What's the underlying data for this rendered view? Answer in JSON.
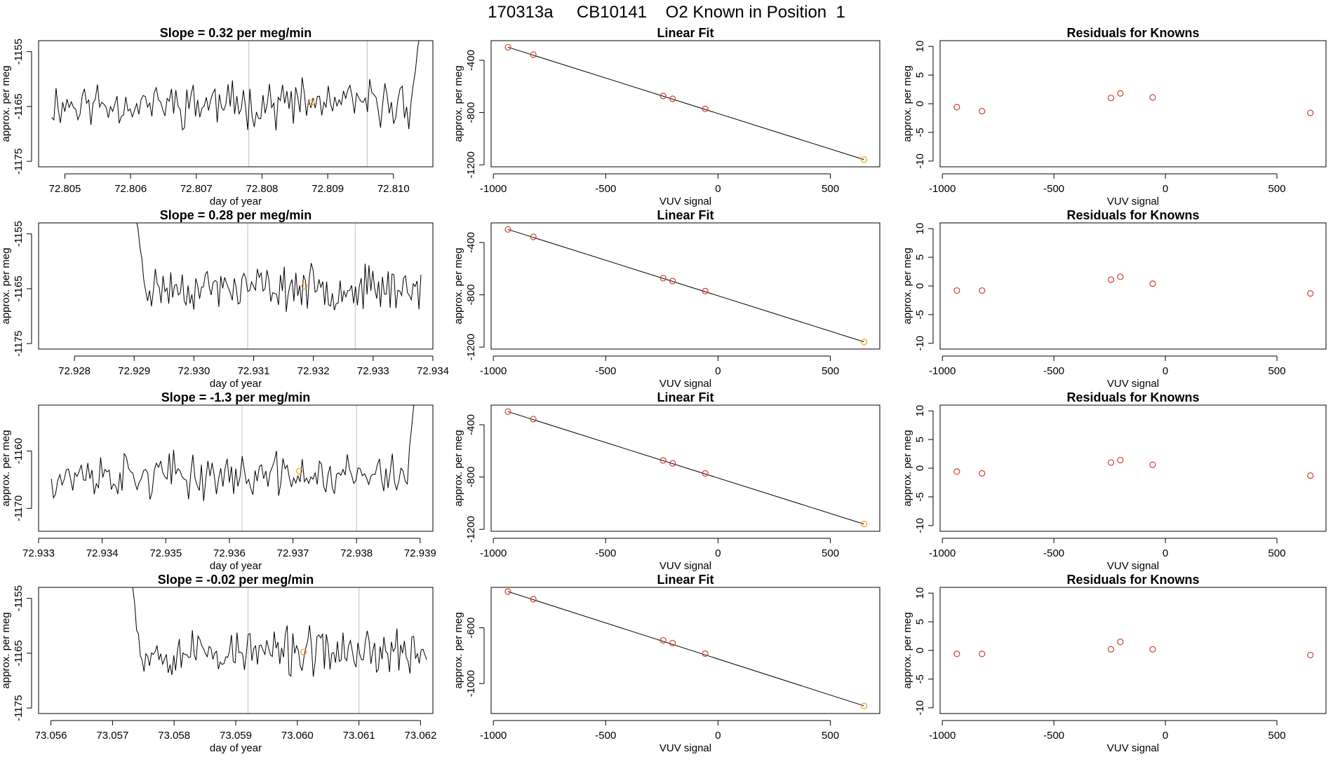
{
  "page": {
    "title": "170313a     CB10141    O2 Known in Position  1"
  },
  "colors": {
    "line": "#000000",
    "axis": "#000000",
    "vline": "#c0c0c0",
    "point_red": "#d04030",
    "point_orange": "#f0a020"
  },
  "chart_data": [
    {
      "id": "ts1",
      "type": "line",
      "title": "Slope =  0.32  per meg/min",
      "xlabel": "day of year",
      "ylabel": "approx. per meg",
      "xlim": [
        72.8046,
        72.8106
      ],
      "ylim": [
        -1176,
        -1153
      ],
      "xticks": [
        72.805,
        72.806,
        72.807,
        72.808,
        72.809,
        72.81
      ],
      "xtick_labels": [
        "72.805",
        "72.806",
        "72.807",
        "72.808",
        "72.809",
        "72.810"
      ],
      "yticks": [
        -1175,
        -1165,
        -1155
      ],
      "ytick_labels": [
        "-1175",
        "-1165",
        "-1155"
      ],
      "vlines": [
        72.8078,
        72.8096
      ],
      "highlight": {
        "x": 72.80875,
        "y": -1164.3
      },
      "series": {
        "x_start": 72.8048,
        "x_end": 72.8104,
        "count": 170,
        "mean": -1164.5,
        "amp": 3.2,
        "seed": 11,
        "start_jump": null,
        "end_jump": {
          "to": -1152,
          "points": 4
        }
      }
    },
    {
      "id": "lf1",
      "type": "scatter",
      "title": "Linear Fit",
      "xlabel": "VUV signal",
      "ylabel": "approx. per meg",
      "xlim": [
        -1010,
        720
      ],
      "ylim": [
        -1215,
        -250
      ],
      "xticks": [
        -1000,
        -500,
        0,
        500
      ],
      "xtick_labels": [
        "-1000",
        "-500",
        "0",
        "500"
      ],
      "yticks": [
        -1200,
        -800,
        -400
      ],
      "ytick_labels": [
        "-1200",
        "-800",
        "-400"
      ],
      "points": [
        [
          -935,
          -300
        ],
        [
          -822,
          -357
        ],
        [
          -244,
          -673
        ],
        [
          -202,
          -695
        ],
        [
          -57,
          -772
        ],
        [
          650,
          -1160
        ]
      ],
      "fit_line": [
        [
          -935,
          -300
        ],
        [
          650,
          -1160
        ]
      ]
    },
    {
      "id": "rk1",
      "type": "scatter",
      "title": "Residuals for Knowns",
      "xlabel": "VUV signal",
      "ylabel": "approx. per meg",
      "xlim": [
        -1010,
        720
      ],
      "ylim": [
        -11,
        11
      ],
      "xticks": [
        -1000,
        -500,
        0,
        500
      ],
      "xtick_labels": [
        "-1000",
        "-500",
        "0",
        "500"
      ],
      "yticks": [
        -10,
        -5,
        0,
        5,
        10
      ],
      "ytick_labels": [
        "-10",
        "-5",
        "0",
        "5",
        "10"
      ],
      "points": [
        [
          -935,
          -0.6
        ],
        [
          -822,
          -1.3
        ],
        [
          -244,
          1.0
        ],
        [
          -202,
          1.8
        ],
        [
          -57,
          1.1
        ],
        [
          650,
          -1.6
        ]
      ]
    },
    {
      "id": "ts2",
      "type": "line",
      "title": "Slope =  0.28  per meg/min",
      "xlabel": "day of year",
      "ylabel": "approx. per meg",
      "xlim": [
        72.9274,
        72.934
      ],
      "ylim": [
        -1176,
        -1153
      ],
      "xticks": [
        72.928,
        72.929,
        72.93,
        72.931,
        72.932,
        72.933,
        72.934
      ],
      "xtick_labels": [
        "72.928",
        "72.929",
        "72.930",
        "72.931",
        "72.932",
        "72.933",
        "72.934"
      ],
      "yticks": [
        -1175,
        -1165,
        -1155
      ],
      "ytick_labels": [
        "-1175",
        "-1165",
        "-1155"
      ],
      "vlines": [
        72.9309,
        72.9327
      ],
      "highlight": {
        "x": 72.93185,
        "y": -1164.5
      },
      "series": {
        "x_start": 72.929,
        "x_end": 72.9338,
        "count": 150,
        "mean": -1164.8,
        "amp": 3.0,
        "seed": 23,
        "start_jump": {
          "from": -1150,
          "points": 6
        },
        "end_jump": null
      }
    },
    {
      "id": "lf2",
      "type": "scatter",
      "title": "Linear Fit",
      "xlabel": "VUV signal",
      "ylabel": "approx. per meg",
      "xlim": [
        -1010,
        720
      ],
      "ylim": [
        -1215,
        -250
      ],
      "xticks": [
        -1000,
        -500,
        0,
        500
      ],
      "xtick_labels": [
        "-1000",
        "-500",
        "0",
        "500"
      ],
      "yticks": [
        -1200,
        -800,
        -400
      ],
      "ytick_labels": [
        "-1200",
        "-800",
        "-400"
      ],
      "points": [
        [
          -935,
          -300
        ],
        [
          -822,
          -357
        ],
        [
          -244,
          -673
        ],
        [
          -202,
          -695
        ],
        [
          -57,
          -772
        ],
        [
          650,
          -1160
        ]
      ],
      "fit_line": [
        [
          -935,
          -300
        ],
        [
          650,
          -1160
        ]
      ]
    },
    {
      "id": "rk2",
      "type": "scatter",
      "title": "Residuals for Knowns",
      "xlabel": "VUV signal",
      "ylabel": "approx. per meg",
      "xlim": [
        -1010,
        720
      ],
      "ylim": [
        -11,
        11
      ],
      "xticks": [
        -1000,
        -500,
        0,
        500
      ],
      "xtick_labels": [
        "-1000",
        "-500",
        "0",
        "500"
      ],
      "yticks": [
        -10,
        -5,
        0,
        5,
        10
      ],
      "ytick_labels": [
        "-10",
        "-5",
        "0",
        "5",
        "10"
      ],
      "points": [
        [
          -935,
          -0.8
        ],
        [
          -822,
          -0.8
        ],
        [
          -244,
          1.1
        ],
        [
          -202,
          1.6
        ],
        [
          -57,
          0.4
        ],
        [
          650,
          -1.3
        ]
      ]
    },
    {
      "id": "ts3",
      "type": "line",
      "title": "Slope =  -1.3  per meg/min",
      "xlabel": "day of year",
      "ylabel": "approx. per meg",
      "xlim": [
        72.933,
        72.9392
      ],
      "ylim": [
        -1174,
        -1152
      ],
      "xticks": [
        72.933,
        72.934,
        72.935,
        72.936,
        72.937,
        72.938,
        72.939
      ],
      "xtick_labels": [
        "72.933",
        "72.934",
        "72.935",
        "72.936",
        "72.937",
        "72.938",
        "72.939"
      ],
      "yticks": [
        -1170,
        -1160
      ],
      "ytick_labels": [
        "-1170",
        "-1160"
      ],
      "vlines": [
        72.9362,
        72.938
      ],
      "highlight": {
        "x": 72.9371,
        "y": -1163.5
      },
      "series": {
        "x_start": 72.9332,
        "x_end": 72.9389,
        "count": 170,
        "mean": -1164.3,
        "amp": 3.0,
        "seed": 37,
        "start_jump": null,
        "end_jump": {
          "to": -1152,
          "points": 3
        }
      }
    },
    {
      "id": "lf3",
      "type": "scatter",
      "title": "Linear Fit",
      "xlabel": "VUV signal",
      "ylabel": "approx. per meg",
      "xlim": [
        -1010,
        720
      ],
      "ylim": [
        -1215,
        -250
      ],
      "xticks": [
        -1000,
        -500,
        0,
        500
      ],
      "xtick_labels": [
        "-1000",
        "-500",
        "0",
        "500"
      ],
      "yticks": [
        -1200,
        -800,
        -400
      ],
      "ytick_labels": [
        "-1200",
        "-800",
        "-400"
      ],
      "points": [
        [
          -935,
          -300
        ],
        [
          -822,
          -357
        ],
        [
          -244,
          -673
        ],
        [
          -202,
          -695
        ],
        [
          -57,
          -772
        ],
        [
          650,
          -1160
        ]
      ],
      "fit_line": [
        [
          -935,
          -300
        ],
        [
          650,
          -1160
        ]
      ]
    },
    {
      "id": "rk3",
      "type": "scatter",
      "title": "Residuals for Knowns",
      "xlabel": "VUV signal",
      "ylabel": "approx. per meg",
      "xlim": [
        -1010,
        720
      ],
      "ylim": [
        -11,
        11
      ],
      "xticks": [
        -1000,
        -500,
        0,
        500
      ],
      "xtick_labels": [
        "-1000",
        "-500",
        "0",
        "500"
      ],
      "yticks": [
        -10,
        -5,
        0,
        5,
        10
      ],
      "ytick_labels": [
        "-10",
        "-5",
        "0",
        "5",
        "10"
      ],
      "points": [
        [
          -935,
          -0.6
        ],
        [
          -822,
          -0.9
        ],
        [
          -244,
          1.0
        ],
        [
          -202,
          1.4
        ],
        [
          -57,
          0.6
        ],
        [
          650,
          -1.3
        ]
      ]
    },
    {
      "id": "ts4",
      "type": "line",
      "title": "Slope =  -0.02  per meg/min",
      "xlabel": "day of year",
      "ylabel": "approx. per meg",
      "xlim": [
        73.0558,
        73.0622
      ],
      "ylim": [
        -1176,
        -1153
      ],
      "xticks": [
        73.056,
        73.057,
        73.058,
        73.059,
        73.06,
        73.061,
        73.062
      ],
      "xtick_labels": [
        "73.056",
        "73.057",
        "73.058",
        "73.059",
        "73.060",
        "73.061",
        "73.062"
      ],
      "yticks": [
        -1175,
        -1165,
        -1155
      ],
      "ytick_labels": [
        "-1175",
        "-1165",
        "-1155"
      ],
      "vlines": [
        73.0592,
        73.061
      ],
      "highlight": {
        "x": 73.0601,
        "y": -1164.8
      },
      "series": {
        "x_start": 73.0573,
        "x_end": 73.0621,
        "count": 160,
        "mean": -1164.8,
        "amp": 3.3,
        "seed": 53,
        "start_jump": {
          "from": -1150,
          "points": 5
        },
        "end_jump": null
      }
    },
    {
      "id": "lf4",
      "type": "scatter",
      "title": "Linear Fit",
      "xlabel": "VUV signal",
      "ylabel": "approx. per meg",
      "xlim": [
        -1010,
        720
      ],
      "ylim": [
        -1215,
        -310
      ],
      "xticks": [
        -1000,
        -500,
        0,
        500
      ],
      "xtick_labels": [
        "-1000",
        "-500",
        "0",
        "500"
      ],
      "yticks": [
        -1000,
        -600
      ],
      "ytick_labels": [
        "-1000",
        "-600"
      ],
      "points": [
        [
          -935,
          -340
        ],
        [
          -822,
          -395
        ],
        [
          -244,
          -690
        ],
        [
          -202,
          -710
        ],
        [
          -57,
          -785
        ],
        [
          650,
          -1160
        ]
      ],
      "fit_line": [
        [
          -935,
          -340
        ],
        [
          650,
          -1160
        ]
      ]
    },
    {
      "id": "rk4",
      "type": "scatter",
      "title": "Residuals for Knowns",
      "xlabel": "VUV signal",
      "ylabel": "approx. per meg",
      "xlim": [
        -1010,
        720
      ],
      "ylim": [
        -11,
        11
      ],
      "xticks": [
        -1000,
        -500,
        0,
        500
      ],
      "xtick_labels": [
        "-1000",
        "-500",
        "0",
        "500"
      ],
      "yticks": [
        -10,
        -5,
        0,
        5,
        10
      ],
      "ytick_labels": [
        "-10",
        "-5",
        "0",
        "5",
        "10"
      ],
      "points": [
        [
          -935,
          -0.6
        ],
        [
          -822,
          -0.6
        ],
        [
          -244,
          0.2
        ],
        [
          -202,
          1.5
        ],
        [
          -57,
          0.2
        ],
        [
          650,
          -0.8
        ]
      ]
    }
  ]
}
